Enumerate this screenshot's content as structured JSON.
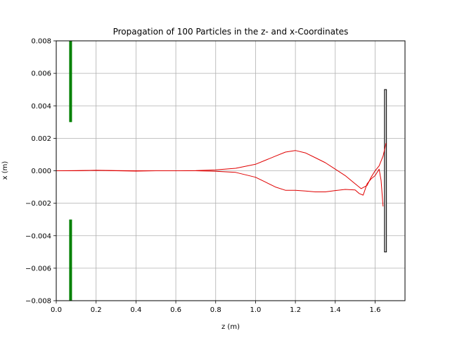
{
  "chart_data": {
    "type": "line",
    "title": "Propagation of 100 Particles in the z- and x-Coordinates",
    "xlabel": "z (m)",
    "ylabel": "x (m)",
    "xlim": [
      0.0,
      1.75
    ],
    "ylim": [
      -0.008,
      0.008
    ],
    "xticks": [
      0.0,
      0.2,
      0.4,
      0.6,
      0.8,
      1.0,
      1.2,
      1.4,
      1.6
    ],
    "xtick_labels": [
      "0.0",
      "0.2",
      "0.4",
      "0.6",
      "0.8",
      "1.0",
      "1.2",
      "1.4",
      "1.6"
    ],
    "yticks": [
      -0.008,
      -0.006,
      -0.004,
      -0.002,
      0.0,
      0.002,
      0.004,
      0.006,
      0.008
    ],
    "ytick_labels": [
      "−0.008",
      "−0.006",
      "−0.004",
      "−0.002",
      "0.000",
      "0.002",
      "0.004",
      "0.006",
      "0.008"
    ],
    "grid": true,
    "colors": {
      "trajectory": "#e00000",
      "aperture": "#008000",
      "detector": "#000000"
    },
    "apertures": [
      {
        "z": 0.072,
        "x_range": [
          0.003,
          0.008
        ]
      },
      {
        "z": 0.072,
        "x_range": [
          -0.008,
          -0.003
        ]
      }
    ],
    "detector": {
      "z_range": [
        1.647,
        1.657
      ],
      "x_range": [
        -0.005,
        0.005
      ]
    },
    "series": [
      {
        "x": [
          0.0,
          0.1,
          0.2,
          0.3,
          0.4,
          0.5,
          0.6,
          0.7,
          0.8,
          0.9,
          1.0,
          1.05,
          1.1,
          1.15,
          1.2,
          1.25,
          1.3,
          1.35,
          1.4,
          1.45,
          1.5,
          1.53,
          1.56,
          1.58,
          1.6,
          1.62,
          1.64,
          1.655
        ],
        "y": [
          0.0,
          1e-05,
          3e-05,
          1e-05,
          0.0,
          0.0,
          0.0,
          1e-05,
          5e-05,
          0.00015,
          0.0004,
          0.00065,
          0.0009,
          0.00115,
          0.00125,
          0.0011,
          0.0008,
          0.0005,
          0.0001,
          -0.0003,
          -0.0008,
          -0.0011,
          -0.0009,
          -0.0004,
          0.0,
          0.0003,
          0.0009,
          0.0017
        ]
      },
      {
        "x": [
          0.0,
          0.1,
          0.2,
          0.3,
          0.4,
          0.5,
          0.6,
          0.7,
          0.8,
          0.9,
          1.0,
          1.05,
          1.1,
          1.15,
          1.2,
          1.25,
          1.3,
          1.35,
          1.4,
          1.45,
          1.5,
          1.52,
          1.54,
          1.56,
          1.58,
          1.6,
          1.62,
          1.63,
          1.64
        ],
        "y": [
          0.0,
          0.0,
          2e-05,
          0.0,
          -2e-05,
          0.0,
          0.0,
          0.0,
          -3e-05,
          -0.0001,
          -0.0004,
          -0.0007,
          -0.001,
          -0.0012,
          -0.0012,
          -0.00125,
          -0.0013,
          -0.0013,
          -0.00122,
          -0.00115,
          -0.00118,
          -0.0014,
          -0.0015,
          -0.0008,
          -0.0005,
          -0.0003,
          0.0001,
          -0.0006,
          -0.0022
        ]
      }
    ]
  }
}
